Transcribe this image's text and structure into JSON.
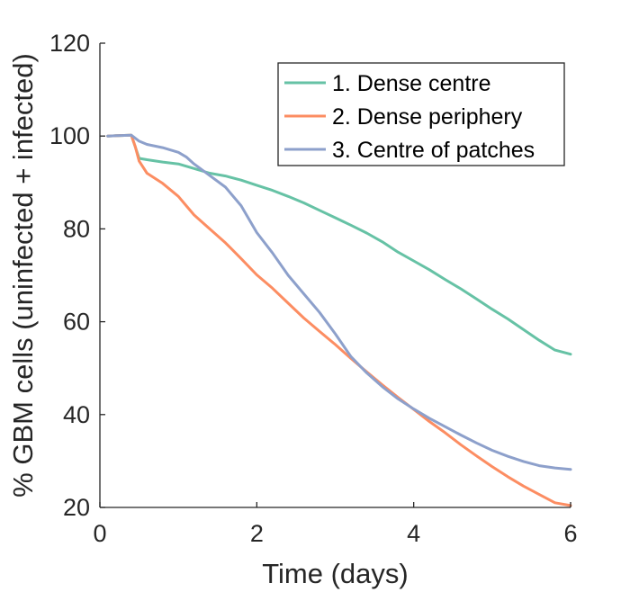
{
  "chart_data": {
    "type": "line",
    "xlabel": "Time (days)",
    "ylabel": "% GBM cells (uninfected + infected)",
    "xlim": [
      0,
      6
    ],
    "ylim": [
      20,
      120
    ],
    "xticks": [
      0,
      2,
      4,
      6
    ],
    "yticks": [
      20,
      40,
      60,
      80,
      100,
      120
    ],
    "grid": false,
    "legend_position": "top-right",
    "series": [
      {
        "name": "1. Dense centre",
        "color": "#66c2a5",
        "points": [
          [
            0.1,
            100
          ],
          [
            0.4,
            100.2
          ],
          [
            0.5,
            95.2
          ],
          [
            0.6,
            94.9
          ],
          [
            0.8,
            94.4
          ],
          [
            1.0,
            94.0
          ],
          [
            1.2,
            93.0
          ],
          [
            1.4,
            92.0
          ],
          [
            1.6,
            91.4
          ],
          [
            1.8,
            90.5
          ],
          [
            2.0,
            89.4
          ],
          [
            2.2,
            88.3
          ],
          [
            2.4,
            87.0
          ],
          [
            2.6,
            85.6
          ],
          [
            2.8,
            84.0
          ],
          [
            3.0,
            82.4
          ],
          [
            3.2,
            80.8
          ],
          [
            3.4,
            79.1
          ],
          [
            3.6,
            77.2
          ],
          [
            3.8,
            75.0
          ],
          [
            4.0,
            73.1
          ],
          [
            4.2,
            71.2
          ],
          [
            4.4,
            69.1
          ],
          [
            4.6,
            67.1
          ],
          [
            4.8,
            64.9
          ],
          [
            5.0,
            62.7
          ],
          [
            5.2,
            60.6
          ],
          [
            5.4,
            58.3
          ],
          [
            5.6,
            56.0
          ],
          [
            5.8,
            53.9
          ],
          [
            6.0,
            53.0
          ]
        ]
      },
      {
        "name": "2. Dense periphery",
        "color": "#fc8d62",
        "points": [
          [
            0.1,
            100
          ],
          [
            0.4,
            100.2
          ],
          [
            0.45,
            97.8
          ],
          [
            0.5,
            94.6
          ],
          [
            0.6,
            92.0
          ],
          [
            0.8,
            89.8
          ],
          [
            1.0,
            87.0
          ],
          [
            1.1,
            85.0
          ],
          [
            1.2,
            83.0
          ],
          [
            1.4,
            80.0
          ],
          [
            1.6,
            77.0
          ],
          [
            1.8,
            73.6
          ],
          [
            2.0,
            70.1
          ],
          [
            2.2,
            67.2
          ],
          [
            2.4,
            64.0
          ],
          [
            2.6,
            60.8
          ],
          [
            2.8,
            57.9
          ],
          [
            3.0,
            55.1
          ],
          [
            3.2,
            52.1
          ],
          [
            3.4,
            49.2
          ],
          [
            3.6,
            46.4
          ],
          [
            3.8,
            43.7
          ],
          [
            4.0,
            41.1
          ],
          [
            4.2,
            38.5
          ],
          [
            4.4,
            36.1
          ],
          [
            4.6,
            33.5
          ],
          [
            4.8,
            31.1
          ],
          [
            5.0,
            28.8
          ],
          [
            5.2,
            26.6
          ],
          [
            5.4,
            24.6
          ],
          [
            5.6,
            22.8
          ],
          [
            5.8,
            21.0
          ],
          [
            6.0,
            20.4
          ]
        ]
      },
      {
        "name": "3. Centre of patches",
        "color": "#8da0cb",
        "points": [
          [
            0.1,
            100
          ],
          [
            0.4,
            100.2
          ],
          [
            0.5,
            98.9
          ],
          [
            0.6,
            98.2
          ],
          [
            0.8,
            97.5
          ],
          [
            1.0,
            96.5
          ],
          [
            1.1,
            95.5
          ],
          [
            1.2,
            94.0
          ],
          [
            1.4,
            91.5
          ],
          [
            1.6,
            89.0
          ],
          [
            1.8,
            85.0
          ],
          [
            2.0,
            79.2
          ],
          [
            2.2,
            74.8
          ],
          [
            2.4,
            70.0
          ],
          [
            2.6,
            66.0
          ],
          [
            2.8,
            62.0
          ],
          [
            3.0,
            57.4
          ],
          [
            3.2,
            52.5
          ],
          [
            3.4,
            49.0
          ],
          [
            3.6,
            46.0
          ],
          [
            3.8,
            43.4
          ],
          [
            4.0,
            41.2
          ],
          [
            4.2,
            39.2
          ],
          [
            4.4,
            37.4
          ],
          [
            4.6,
            35.6
          ],
          [
            4.8,
            33.9
          ],
          [
            5.0,
            32.3
          ],
          [
            5.2,
            31.0
          ],
          [
            5.4,
            29.9
          ],
          [
            5.6,
            29.0
          ],
          [
            5.8,
            28.5
          ],
          [
            6.0,
            28.2
          ]
        ]
      }
    ]
  }
}
